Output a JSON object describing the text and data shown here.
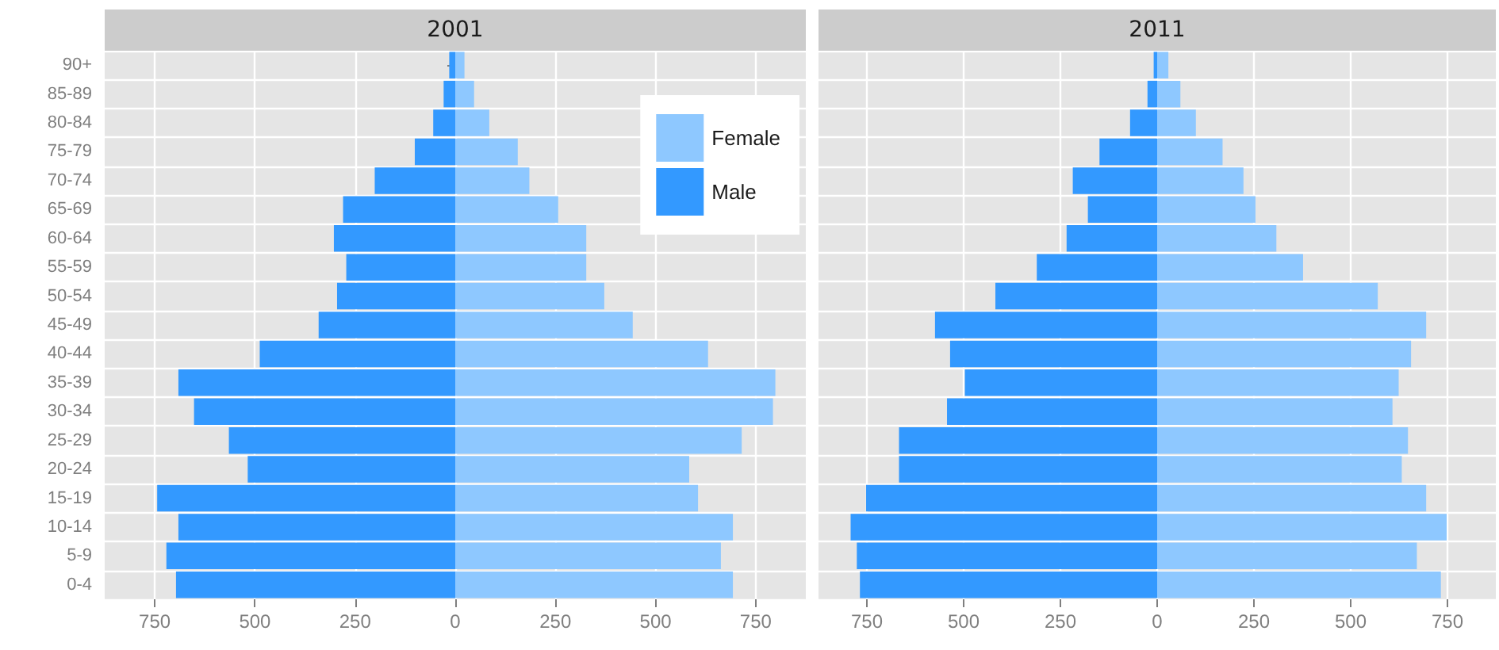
{
  "chart_data": [
    {
      "type": "bar",
      "title": "2001",
      "orientation": "horizontal",
      "stacked": true,
      "grid": true,
      "legend": "top right",
      "categories": [
        "90+",
        "85-89",
        "80-84",
        "75-79",
        "70-74",
        "65-69",
        "60-64",
        "55-59",
        "50-54",
        "45-49",
        "40-44",
        "35-39",
        "30-34",
        "25-29",
        "20-24",
        "15-19",
        "10-14",
        "5-9",
        "0-4"
      ],
      "series": [
        {
          "name": "Female",
          "color": "#8ec8ff",
          "values": [
            23,
            47,
            85,
            156,
            185,
            257,
            327,
            327,
            372,
            443,
            631,
            799,
            793,
            715,
            584,
            606,
            693,
            663,
            693
          ]
        },
        {
          "name": "Male",
          "color": "#3399ff",
          "values": [
            -15,
            -29,
            -55,
            -101,
            -201,
            -280,
            -303,
            -272,
            -295,
            -341,
            -488,
            -691,
            -652,
            -565,
            -518,
            -744,
            -691,
            -721,
            -697
          ]
        }
      ],
      "xlim": [
        -875,
        875
      ],
      "xticks": [
        {
          "value": -750,
          "label": "750"
        },
        {
          "value": -500,
          "label": "500"
        },
        {
          "value": -250,
          "label": "250"
        },
        0,
        250,
        500,
        750
      ]
    },
    {
      "type": "bar",
      "title": "2011",
      "orientation": "horizontal",
      "stacked": true,
      "grid": true,
      "tick_labels": "x",
      "categories": [
        null,
        null,
        null,
        null,
        null,
        null,
        null,
        null,
        null,
        null,
        null,
        null,
        null,
        null,
        null,
        null,
        null,
        null,
        null
      ],
      "series": [
        {
          "color": "#8ec8ff",
          "values": [
            29,
            60,
            100,
            169,
            223,
            254,
            308,
            377,
            570,
            695,
            656,
            624,
            608,
            648,
            632,
            695,
            748,
            671,
            733
          ]
        },
        {
          "color": "#3399ff",
          "values": [
            -9,
            -25,
            -70,
            -149,
            -218,
            -179,
            -234,
            -311,
            -418,
            -574,
            -535,
            -497,
            -543,
            -667,
            -667,
            -752,
            -792,
            -776,
            -768
          ]
        }
      ],
      "xlim": [
        -875,
        875
      ],
      "xticks": [
        {
          "value": -750,
          "label": "750"
        },
        {
          "value": -500,
          "label": "500"
        },
        {
          "value": -250,
          "label": "250"
        },
        0,
        250,
        500,
        750
      ]
    }
  ]
}
